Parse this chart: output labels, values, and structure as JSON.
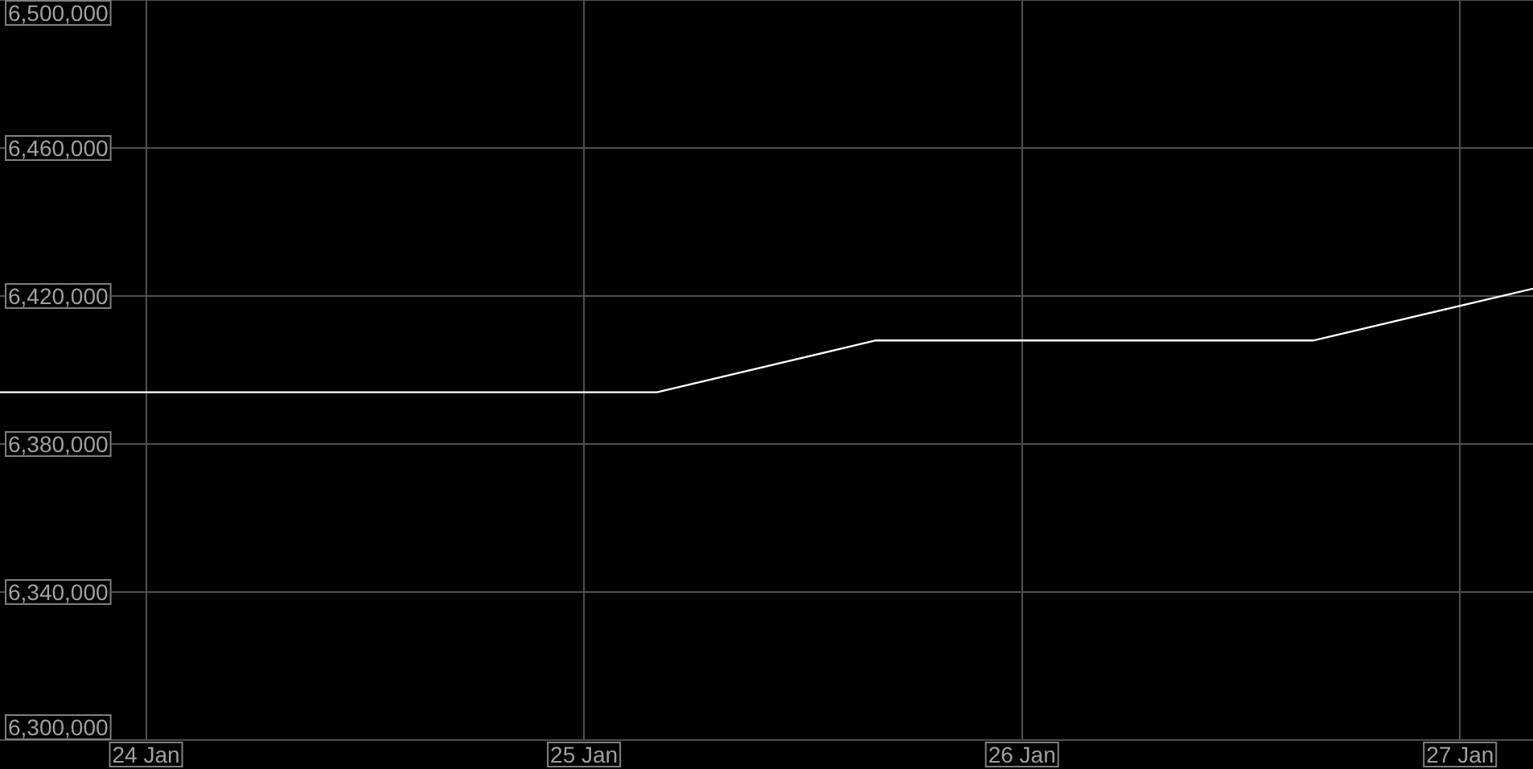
{
  "chart_data": {
    "type": "line",
    "x": [
      "--01-23T16:00",
      "--01-25T04:00",
      "--01-25T16:00",
      "--01-26T16:00",
      "--01-27T04:00"
    ],
    "series": [
      {
        "color": "#ffffff",
        "values": [
          6394000,
          6394000,
          6408000,
          6408000,
          6422000
        ]
      }
    ],
    "xlim": [
      "--01-23T16:00",
      "--01-27T04:00"
    ],
    "xticks": [
      {
        "value": "--01-24",
        "label": "24 Jan"
      },
      {
        "value": "--01-25",
        "label": "25 Jan"
      },
      {
        "value": "--01-26",
        "label": "26 Jan"
      },
      {
        "value": "--01-27",
        "label": "27 Jan"
      }
    ],
    "ylim": [
      6300000,
      6500000
    ],
    "yticks": [
      {
        "value": 6300000,
        "label": "6,300,000"
      },
      {
        "value": 6340000,
        "label": "6,340,000"
      },
      {
        "value": 6380000,
        "label": "6,380,000"
      },
      {
        "value": 6420000,
        "label": "6,420,000"
      },
      {
        "value": 6460000,
        "label": "6,460,000"
      },
      {
        "value": 6500000,
        "label": "6,500,000"
      }
    ],
    "grid": true,
    "legend": false,
    "marker": "none",
    "line_style": "solid"
  }
}
